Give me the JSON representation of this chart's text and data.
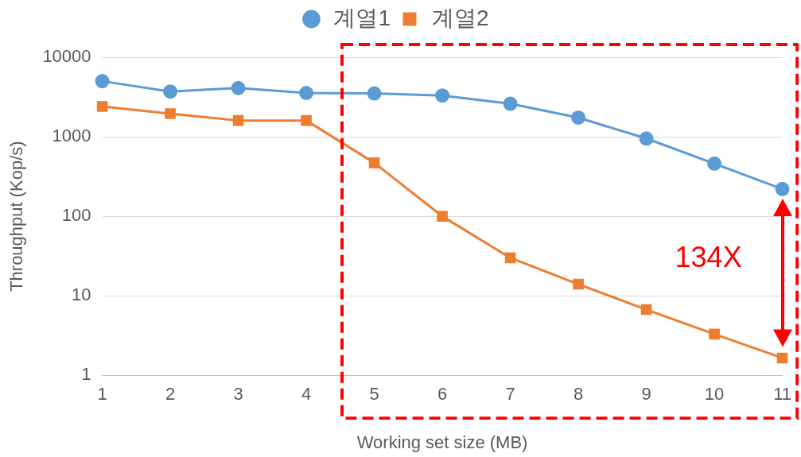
{
  "chart_data": {
    "type": "line",
    "xlabel": "Working set size (MB)",
    "ylabel": "Throughput (Kop/s)",
    "categories": [
      "1",
      "2",
      "3",
      "4",
      "5",
      "6",
      "7",
      "8",
      "9",
      "10",
      "11"
    ],
    "series": [
      {
        "name": "계열1",
        "color": "#5b9bd5",
        "marker": "circle",
        "values": [
          5000,
          3700,
          4100,
          3550,
          3500,
          3300,
          2600,
          1740,
          950,
          460,
          220
        ]
      },
      {
        "name": "계열2",
        "color": "#ed7d31",
        "marker": "square",
        "values": [
          2400,
          1950,
          1600,
          1600,
          470,
          100,
          30,
          14,
          6.7,
          3.3,
          1.65
        ]
      }
    ],
    "log": "y",
    "ylim": [
      1,
      10000
    ],
    "yticks": [
      1,
      10,
      100,
      1000,
      10000
    ],
    "grid": "y",
    "legend": "top",
    "line_style": "solid",
    "annotations": [
      "134X"
    ]
  }
}
